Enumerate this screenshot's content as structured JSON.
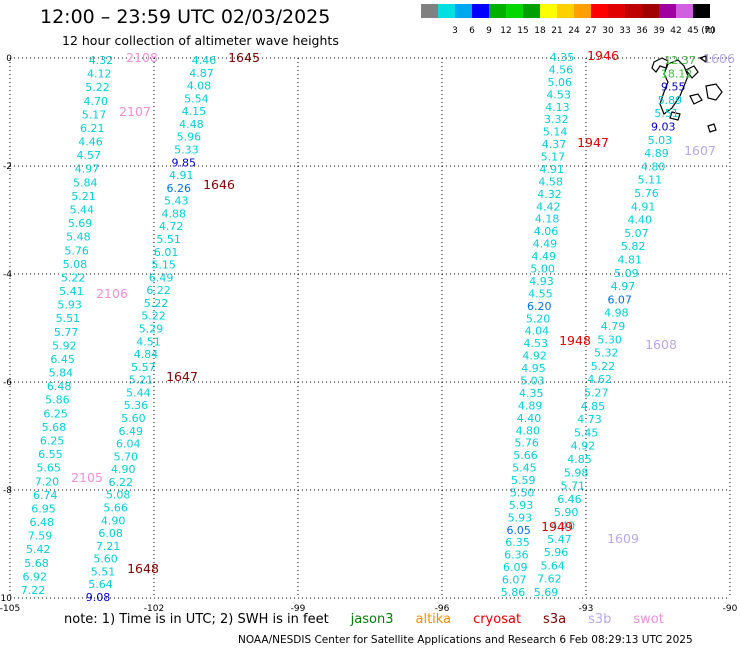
{
  "header": {
    "title": "12:00 – 23:59 UTC 02/03/2025",
    "subtitle": "12 hour collection of altimeter wave heights"
  },
  "legend": {
    "unit": "(ft)",
    "entries": [
      {
        "label": "",
        "color": "#808080"
      },
      {
        "label": "3",
        "color": "#00e0e0"
      },
      {
        "label": "6",
        "color": "#00a8f0"
      },
      {
        "label": "9",
        "color": "#0000ff"
      },
      {
        "label": "12",
        "color": "#00b000"
      },
      {
        "label": "15",
        "color": "#00d800"
      },
      {
        "label": "18",
        "color": "#00a000"
      },
      {
        "label": "21",
        "color": "#ffff00"
      },
      {
        "label": "24",
        "color": "#ffd000"
      },
      {
        "label": "27",
        "color": "#ffa000"
      },
      {
        "label": "30",
        "color": "#ff0000"
      },
      {
        "label": "33",
        "color": "#e00000"
      },
      {
        "label": "36",
        "color": "#c00000"
      },
      {
        "label": "39",
        "color": "#a00000"
      },
      {
        "label": "42",
        "color": "#a000a0"
      },
      {
        "label": "45",
        "color": "#d060e0"
      },
      {
        "label": "70",
        "color": "#000000"
      }
    ]
  },
  "axes": {
    "lon_labels": [
      "-105",
      "-102",
      "-99",
      "-96",
      "-93",
      "-90"
    ],
    "lat_labels": [
      "0",
      "-2",
      "-4",
      "-6",
      "-8",
      "-10"
    ]
  },
  "tracks": [
    {
      "satellite": "jason3_west",
      "values": [
        "4.32",
        "4.12",
        "5.22",
        "4.70",
        "5.17",
        "6.21",
        "4.46",
        "4.57",
        "4.97",
        "5.84",
        "5.21",
        "5.44",
        "5.69",
        "5.48",
        "5.76",
        "5.08",
        "5.22",
        "5.41",
        "5.93",
        "5.51",
        "5.77",
        "5.92",
        "6.45",
        "5.84",
        "6.48",
        "5.86",
        "6.25",
        "5.68",
        "6.25",
        "6.55",
        "5.65",
        "7.20",
        "6.74",
        "6.95",
        "6.48",
        "7.59",
        "5.42",
        "5.68",
        "6.92",
        "7.22"
      ],
      "colors": [
        "cyan",
        "cyan",
        "cyan",
        "cyan",
        "cyan",
        "cyan",
        "cyan",
        "cyan",
        "cyan",
        "cyan",
        "cyan",
        "cyan",
        "cyan",
        "cyan",
        "cyan",
        "cyan",
        "cyan",
        "cyan",
        "cyan",
        "cyan",
        "cyan",
        "cyan",
        "cyan",
        "cyan",
        "cyan",
        "cyan",
        "cyan",
        "cyan",
        "cyan",
        "cyan",
        "cyan",
        "cyan",
        "cyan",
        "cyan",
        "cyan",
        "cyan",
        "cyan",
        "cyan",
        "cyan",
        "cyan"
      ]
    },
    {
      "satellite": "jason3_middle",
      "values": [
        "4.46",
        "4.87",
        "4.08",
        "5.54",
        "4.15",
        "4.48",
        "5.96",
        "5.33",
        "9.85",
        "4.91",
        "6.26",
        "5.43",
        "4.88",
        "4.72",
        "5.51",
        "6.01",
        "5.15",
        "6.49",
        "6.22",
        "5.22",
        "5.22",
        "5.29",
        "4.51",
        "4.84",
        "5.57",
        "5.21",
        "5.44",
        "5.36",
        "5.60",
        "6.49",
        "6.04",
        "5.70",
        "4.90",
        "6.22",
        "5.08",
        "5.66",
        "4.90",
        "6.08",
        "7.21",
        "5.60",
        "5.51",
        "5.64",
        "9.08"
      ],
      "colors": [
        "cyan",
        "cyan",
        "cyan",
        "cyan",
        "cyan",
        "cyan",
        "cyan",
        "cyan",
        "navy",
        "cyan",
        "blue",
        "cyan",
        "cyan",
        "cyan",
        "cyan",
        "cyan",
        "cyan",
        "cyan",
        "cyan",
        "cyan",
        "cyan",
        "cyan",
        "cyan",
        "cyan",
        "cyan",
        "cyan",
        "cyan",
        "cyan",
        "cyan",
        "cyan",
        "cyan",
        "cyan",
        "cyan",
        "cyan",
        "cyan",
        "cyan",
        "cyan",
        "cyan",
        "cyan",
        "cyan",
        "cyan",
        "cyan",
        "navy"
      ]
    },
    {
      "satellite": "east_a",
      "values": [
        "4.35",
        "4.56",
        "5.06",
        "4.53",
        "4.13",
        "3.32",
        "5.14",
        "4.37",
        "5.17",
        "4.91",
        "4.58",
        "4.32",
        "4.42",
        "4.18",
        "4.06",
        "4.49",
        "4.49",
        "5.00",
        "4.93",
        "4.55",
        "6.20",
        "5.20",
        "4.04",
        "4.53",
        "4.92",
        "4.95",
        "5.03",
        "4.35",
        "4.89",
        "4.40",
        "4.80",
        "5.76",
        "5.66",
        "5.45",
        "5.59",
        "5.50",
        "5.93",
        "5.93",
        "6.05",
        "6.35",
        "6.36",
        "6.09",
        "6.07",
        "5.86"
      ],
      "colors": [
        "cyan",
        "cyan",
        "cyan",
        "cyan",
        "cyan",
        "cyan",
        "cyan",
        "cyan",
        "cyan",
        "cyan",
        "cyan",
        "cyan",
        "cyan",
        "cyan",
        "cyan",
        "cyan",
        "cyan",
        "cyan",
        "cyan",
        "cyan",
        "blue",
        "cyan",
        "cyan",
        "cyan",
        "cyan",
        "cyan",
        "cyan",
        "cyan",
        "cyan",
        "cyan",
        "cyan",
        "cyan",
        "cyan",
        "cyan",
        "cyan",
        "cyan",
        "cyan",
        "cyan",
        "blue",
        "cyan",
        "cyan",
        "cyan",
        "cyan",
        "cyan"
      ]
    },
    {
      "satellite": "east_b",
      "values": [
        "12.37",
        "18.12",
        "9.55",
        "5.89",
        "5.51",
        "9.03",
        "5.03",
        "4.89",
        "4.80",
        "5.11",
        "5.76",
        "4.91",
        "4.40",
        "5.07",
        "5.82",
        "4.81",
        "5.09",
        "4.97",
        "6.07",
        "4.98",
        "4.79",
        "5.30",
        "5.32",
        "5.22",
        "4.62",
        "5.27",
        "4.85",
        "4.73",
        "5.45",
        "4.92",
        "4.85",
        "5.98",
        "5.71",
        "6.46",
        "5.90",
        "4.40",
        "5.47",
        "5.96",
        "5.64",
        "7.62",
        "5.69"
      ],
      "colors": [
        "green",
        "green",
        "navy",
        "cyan",
        "cyan",
        "navy",
        "cyan",
        "cyan",
        "cyan",
        "cyan",
        "cyan",
        "cyan",
        "cyan",
        "cyan",
        "cyan",
        "cyan",
        "cyan",
        "cyan",
        "blue",
        "cyan",
        "cyan",
        "cyan",
        "cyan",
        "cyan",
        "cyan",
        "cyan",
        "cyan",
        "cyan",
        "cyan",
        "cyan",
        "cyan",
        "cyan",
        "cyan",
        "cyan",
        "cyan",
        "cyan",
        "cyan",
        "cyan",
        "cyan",
        "cyan",
        "cyan"
      ]
    }
  ],
  "time_labels": [
    {
      "text": "2108",
      "color": "#f08ed8"
    },
    {
      "text": "2107",
      "color": "#f08ed8"
    },
    {
      "text": "2106",
      "color": "#f08ed8"
    },
    {
      "text": "2105",
      "color": "#f08ed8"
    },
    {
      "text": "1645",
      "color": "#800000"
    },
    {
      "text": "1646",
      "color": "#800000"
    },
    {
      "text": "1647",
      "color": "#800000"
    },
    {
      "text": "1648",
      "color": "#800000"
    },
    {
      "text": "1946",
      "color": "#e00000"
    },
    {
      "text": "1947",
      "color": "#e00000"
    },
    {
      "text": "1948",
      "color": "#e00000"
    },
    {
      "text": "1949",
      "color": "#e00000"
    },
    {
      "text": "1606",
      "color": "#b8a8e8"
    },
    {
      "text": "1607",
      "color": "#b8a8e8"
    },
    {
      "text": "1608",
      "color": "#b8a8e8"
    },
    {
      "text": "1609",
      "color": "#b8a8e8"
    }
  ],
  "footer": {
    "note": "note: 1) Time is in UTC; 2) SWH is in feet",
    "satellites": [
      {
        "name": "jason3",
        "color": "#008000"
      },
      {
        "name": "altika",
        "color": "#ff8c00"
      },
      {
        "name": "cryosat",
        "color": "#e00000"
      },
      {
        "name": "s3a",
        "color": "#800000"
      },
      {
        "name": "s3b",
        "color": "#b8a8e8"
      },
      {
        "name": "swot",
        "color": "#f08ed8"
      }
    ],
    "credit": "NOAA/NESDIS Center for Satellite Applications and Research    6 Feb 08:29:13 UTC 2025"
  }
}
